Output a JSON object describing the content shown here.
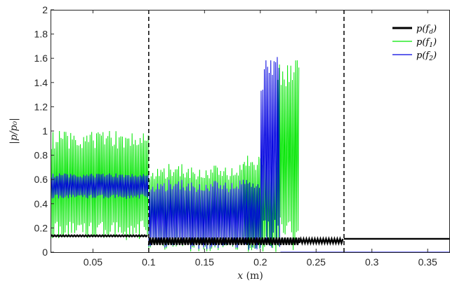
{
  "chart_data": {
    "type": "line",
    "xlabel_var": "x",
    "xlabel_unit": " (m)",
    "ylabel": "|p/p₀|",
    "xlim": [
      0.012,
      0.37
    ],
    "ylim": [
      0,
      2
    ],
    "xticks": [
      0.05,
      0.1,
      0.15,
      0.2,
      0.25,
      0.3,
      0.35
    ],
    "xtick_labels": [
      "0.05",
      "0.1",
      "0.15",
      "0.2",
      "0.25",
      "0.3",
      "0.35"
    ],
    "yticks": [
      0,
      0.2,
      0.4,
      0.6,
      0.8,
      1,
      1.2,
      1.4,
      1.6,
      1.8,
      2
    ],
    "ytick_labels": [
      "0",
      "0.2",
      "0.4",
      "0.6",
      "0.8",
      "1",
      "1.2",
      "1.4",
      "1.6",
      "1.8",
      "2"
    ],
    "grid": false,
    "legend_position": "top-right",
    "vertical_dashed_lines": [
      0.1,
      0.275
    ],
    "series": [
      {
        "name": "p(f_d)",
        "legend_label": "p(fd)",
        "color": "#000000",
        "segments": [
          {
            "x_range": [
              0.012,
              0.1
            ],
            "low": 0.13,
            "high": 0.14
          },
          {
            "x_range": [
              0.1,
              0.235
            ],
            "low": 0.06,
            "high": 0.12
          },
          {
            "x_range": [
              0.235,
              0.275
            ],
            "low": 0.075,
            "high": 0.11
          },
          {
            "x_range": [
              0.275,
              0.37
            ],
            "low": 0.11,
            "high": 0.11
          }
        ]
      },
      {
        "name": "p(f_1)",
        "legend_label": "p(f1)",
        "color": "#00e600",
        "segments": [
          {
            "x_range": [
              0.012,
              0.1
            ],
            "low": 0.1,
            "high": 1.0
          },
          {
            "x_range": [
              0.1,
              0.185
            ],
            "low": 0.0,
            "high": 0.73
          },
          {
            "x_range": [
              0.185,
              0.215
            ],
            "low": 0.0,
            "high": 0.8
          },
          {
            "x_range": [
              0.215,
              0.235
            ],
            "low": 0.0,
            "high": 1.6
          },
          {
            "x_range": [
              0.235,
              0.37
            ],
            "low": 0.0,
            "high": 0.0
          }
        ]
      },
      {
        "name": "p(f_2)",
        "legend_label": "p(f2)",
        "color": "#0000e0",
        "segments": [
          {
            "x_range": [
              0.012,
              0.1
            ],
            "low": 0.44,
            "high": 0.65
          },
          {
            "x_range": [
              0.1,
              0.2
            ],
            "low": 0.02,
            "high": 0.6
          },
          {
            "x_range": [
              0.2,
              0.218
            ],
            "low": 0.0,
            "high": 1.62
          },
          {
            "x_range": [
              0.218,
              0.37
            ],
            "low": 0.0,
            "high": 0.0
          }
        ]
      }
    ]
  }
}
